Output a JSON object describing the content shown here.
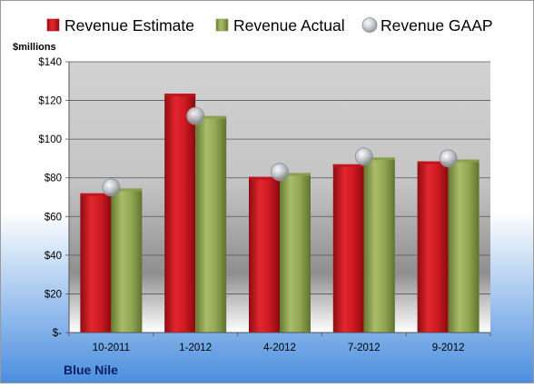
{
  "colors": {
    "estimate": "#c0141c",
    "actual": "#8aa04c",
    "gaap": "#b9bdc4",
    "background_top": "#ffffff",
    "background_bottom": "#4a8edf",
    "plot_top": "#d2d2d2",
    "plot_bottom": "#ffffff",
    "company_text": "#0b1e63"
  },
  "company": "Blue Nile",
  "chart_data": {
    "type": "bar",
    "categories": [
      "10-2011",
      "1-2012",
      "4-2012",
      "7-2012",
      "9-2012"
    ],
    "series": [
      {
        "name": "Revenue Estimate",
        "kind": "bar",
        "values": [
          72,
          123.5,
          80.5,
          87,
          88.5
        ]
      },
      {
        "name": "Revenue Actual",
        "kind": "bar",
        "values": [
          74.5,
          112,
          82.5,
          90.5,
          89.5
        ]
      },
      {
        "name": "Revenue GAAP",
        "kind": "marker",
        "values": [
          75,
          112,
          83,
          91,
          90
        ]
      }
    ],
    "ylabel": "$millions",
    "ylim": [
      0,
      140
    ],
    "yticks": [
      0,
      20,
      40,
      60,
      80,
      100,
      120,
      140
    ],
    "ytick_labels": [
      "$-",
      "$20",
      "$40",
      "$60",
      "$80",
      "$100",
      "$120",
      "$140"
    ],
    "grid": true,
    "legend_position": "top"
  }
}
